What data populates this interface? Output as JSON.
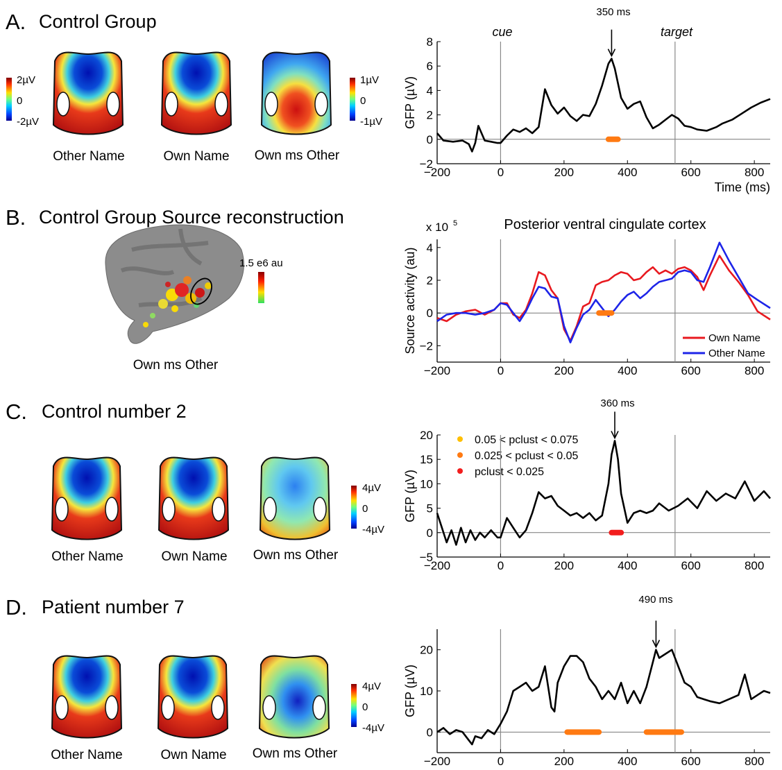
{
  "panels": {
    "A": {
      "letter": "A.",
      "title": "Control Group",
      "maps": [
        "Other Name",
        "Own Name",
        "Own ms Other"
      ],
      "colorbar1": {
        "max": "2µV",
        "mid": "0",
        "min": "-2µV"
      },
      "colorbar2": {
        "max": "1µV",
        "mid": "0",
        "min": "-1µV"
      },
      "annotation": "350 ms",
      "cue_label": "cue",
      "target_label": "target"
    },
    "B": {
      "letter": "B.",
      "title": "Control Group Source reconstruction",
      "brain_label": "Own ms Other",
      "colorbar_label": "1.5 e6 au",
      "plot_title": "Posterior ventral cingulate cortex"
    },
    "C": {
      "letter": "C.",
      "title": "Control number 2",
      "maps": [
        "Other Name",
        "Own Name",
        "Own ms Other"
      ],
      "colorbar": {
        "max": "4µV",
        "mid": "0",
        "min": "-4µV"
      },
      "annotation": "360 ms",
      "legend": [
        "0.05 < pclust < 0.075",
        "0.025 < pclust < 0.05",
        "pclust < 0.025"
      ]
    },
    "D": {
      "letter": "D.",
      "title": "Patient number 7",
      "maps": [
        "Other Name",
        "Own Name",
        "Own ms Other"
      ],
      "colorbar": {
        "max": "4µV",
        "mid": "0",
        "min": "-4µV"
      },
      "annotation": "490 ms"
    }
  },
  "colors": {
    "own": "#e8191f",
    "other": "#1d24e8",
    "sig_orange": "#ff7a12",
    "sig_red": "#f21d1d",
    "sig_yellow": "#ffbf00"
  },
  "chart_data": [
    {
      "id": "A",
      "type": "line",
      "xlabel": "Time (ms)",
      "ylabel": "GFP (µV)",
      "xlim": [
        -200,
        850
      ],
      "ylim": [
        -2,
        8
      ],
      "xticks": [
        -200,
        0,
        200,
        400,
        600,
        800
      ],
      "yticks": [
        -2,
        0,
        2,
        4,
        6,
        8
      ],
      "vlines": [
        0,
        550
      ],
      "series": [
        {
          "x": [
            -200,
            -180,
            -150,
            -120,
            -100,
            -90,
            -80,
            -70,
            -50,
            -30,
            -10,
            0,
            20,
            40,
            60,
            80,
            100,
            120,
            140,
            160,
            180,
            200,
            220,
            240,
            260,
            280,
            300,
            320,
            340,
            350,
            360,
            380,
            400,
            420,
            440,
            460,
            480,
            500,
            520,
            540,
            560,
            580,
            600,
            620,
            650,
            680,
            700,
            730,
            760,
            790,
            820,
            850
          ],
          "y": [
            0.5,
            -0.1,
            -0.2,
            -0.1,
            -0.4,
            -1.0,
            -0.3,
            1.1,
            -0.1,
            -0.2,
            -0.3,
            -0.3,
            0.3,
            0.8,
            0.6,
            0.9,
            0.5,
            1.0,
            4.1,
            2.8,
            2.1,
            2.6,
            1.9,
            1.5,
            2.0,
            1.9,
            2.9,
            4.4,
            6.2,
            6.6,
            5.8,
            3.4,
            2.5,
            2.9,
            3.1,
            1.8,
            0.9,
            1.2,
            1.6,
            2.0,
            1.7,
            1.1,
            1.0,
            0.8,
            0.7,
            1.0,
            1.3,
            1.6,
            2.1,
            2.6,
            3.0,
            3.3
          ]
        }
      ],
      "significance": [
        {
          "range": [
            340,
            370
          ],
          "level": "0.025 < pclust < 0.05"
        }
      ]
    },
    {
      "id": "B",
      "type": "line",
      "title": "Posterior ventral cingulate cortex",
      "ylabel": "Source activity (au)",
      "yscale_label": "x 10",
      "xlim": [
        -200,
        850
      ],
      "ylim": [
        -3,
        4.5
      ],
      "xticks": [
        -200,
        0,
        200,
        400,
        600,
        800
      ],
      "yticks": [
        -2,
        0,
        2,
        4
      ],
      "vlines": [
        0,
        550
      ],
      "series": [
        {
          "name": "Own Name",
          "x": [
            -200,
            -170,
            -140,
            -110,
            -80,
            -50,
            -20,
            0,
            20,
            40,
            60,
            80,
            100,
            120,
            140,
            160,
            180,
            200,
            220,
            240,
            260,
            280,
            300,
            320,
            340,
            360,
            380,
            400,
            420,
            440,
            460,
            480,
            500,
            520,
            540,
            560,
            580,
            600,
            620,
            640,
            660,
            690,
            720,
            750,
            780,
            810,
            850
          ],
          "y": [
            -0.3,
            -0.5,
            -0.1,
            0.1,
            0.2,
            -0.1,
            0.2,
            0.6,
            0.6,
            -0.1,
            -0.3,
            0.2,
            1.2,
            2.5,
            2.3,
            1.4,
            0.9,
            -1.0,
            -1.7,
            -0.8,
            0.4,
            0.6,
            1.7,
            1.9,
            2.0,
            2.3,
            2.5,
            2.4,
            2.0,
            2.1,
            2.5,
            2.8,
            2.4,
            2.6,
            2.4,
            2.7,
            2.8,
            2.6,
            2.2,
            1.4,
            2.3,
            3.5,
            2.6,
            1.9,
            1.1,
            0.1,
            -0.4
          ]
        },
        {
          "name": "Other Name",
          "x": [
            -200,
            -170,
            -140,
            -110,
            -80,
            -50,
            -20,
            0,
            20,
            40,
            60,
            80,
            100,
            120,
            140,
            160,
            180,
            200,
            220,
            240,
            260,
            280,
            300,
            320,
            340,
            360,
            380,
            400,
            420,
            440,
            460,
            480,
            500,
            520,
            540,
            560,
            580,
            600,
            620,
            640,
            660,
            690,
            720,
            750,
            780,
            810,
            850
          ],
          "y": [
            -0.5,
            -0.1,
            0.0,
            0.0,
            -0.1,
            0.0,
            0.2,
            0.6,
            0.5,
            0.0,
            -0.5,
            0.1,
            0.9,
            1.6,
            1.5,
            1.0,
            0.9,
            -0.8,
            -1.8,
            -0.9,
            -0.1,
            0.2,
            0.8,
            0.3,
            -0.2,
            0.2,
            0.7,
            1.1,
            1.3,
            0.9,
            1.2,
            1.6,
            1.9,
            2.0,
            2.1,
            2.5,
            2.6,
            2.5,
            2.0,
            1.9,
            2.8,
            4.3,
            3.2,
            2.2,
            1.2,
            0.8,
            0.3
          ]
        }
      ],
      "significance": [
        {
          "range": [
            310,
            350
          ],
          "level": "0.025 < pclust < 0.05"
        }
      ]
    },
    {
      "id": "C",
      "type": "line",
      "ylabel": "GFP (µV)",
      "xlim": [
        -200,
        850
      ],
      "ylim": [
        -5,
        20
      ],
      "xticks": [
        -200,
        0,
        200,
        400,
        600,
        800
      ],
      "yticks": [
        -5,
        0,
        5,
        10,
        15,
        20
      ],
      "vlines": [
        0,
        550
      ],
      "series": [
        {
          "x": [
            -200,
            -185,
            -170,
            -155,
            -140,
            -125,
            -110,
            -95,
            -80,
            -65,
            -50,
            -30,
            -10,
            0,
            20,
            40,
            60,
            80,
            100,
            120,
            140,
            160,
            180,
            200,
            220,
            240,
            260,
            280,
            300,
            320,
            340,
            350,
            360,
            370,
            380,
            400,
            420,
            440,
            460,
            480,
            500,
            530,
            560,
            590,
            620,
            650,
            680,
            710,
            740,
            770,
            800,
            830,
            850
          ],
          "y": [
            4,
            1,
            -2,
            0.5,
            -2.5,
            1,
            -2,
            0.5,
            -1.5,
            0,
            -1,
            0.5,
            -1,
            -1,
            3,
            1,
            -1,
            0.5,
            4,
            8.3,
            7,
            7.5,
            5.5,
            4.5,
            3.5,
            4,
            3,
            4,
            2.5,
            3.5,
            10,
            16,
            18.8,
            15,
            8,
            2,
            4,
            4.5,
            4,
            4.5,
            6,
            4.5,
            5.5,
            7,
            5,
            8.5,
            6.5,
            8,
            7,
            10.5,
            6.5,
            8.5,
            7
          ]
        }
      ],
      "significance": [
        {
          "range": [
            350,
            380
          ],
          "level": "pclust < 0.025"
        }
      ]
    },
    {
      "id": "D",
      "type": "line",
      "ylabel": "GFP (µV)",
      "xlim": [
        -200,
        850
      ],
      "ylim": [
        -5,
        25
      ],
      "xticks": [
        -200,
        0,
        200,
        400,
        600,
        800
      ],
      "yticks": [
        0,
        10,
        20
      ],
      "vlines": [
        0,
        550
      ],
      "series": [
        {
          "x": [
            -200,
            -180,
            -160,
            -140,
            -120,
            -100,
            -90,
            -80,
            -60,
            -40,
            -20,
            0,
            20,
            40,
            60,
            80,
            100,
            120,
            140,
            160,
            170,
            180,
            200,
            220,
            240,
            260,
            280,
            300,
            320,
            340,
            360,
            380,
            400,
            420,
            440,
            460,
            480,
            490,
            500,
            520,
            540,
            560,
            580,
            600,
            620,
            640,
            660,
            690,
            720,
            750,
            770,
            790,
            810,
            830,
            850
          ],
          "y": [
            0,
            1,
            -0.5,
            0.5,
            0,
            -2,
            -3,
            -1,
            -1.5,
            0.5,
            -0.5,
            2,
            5,
            10,
            11,
            12,
            10,
            11,
            16,
            6,
            5,
            12,
            16,
            18.5,
            18.5,
            17,
            13,
            11,
            8,
            10,
            8,
            12,
            7,
            10,
            7,
            11,
            17,
            20,
            18,
            19,
            20,
            16,
            12,
            11,
            8.5,
            8,
            7.5,
            7,
            8,
            9,
            14,
            8,
            9,
            10,
            9.5
          ]
        }
      ],
      "significance": [
        {
          "range": [
            210,
            310
          ],
          "level": "0.025 < pclust < 0.05"
        },
        {
          "range": [
            460,
            570
          ],
          "level": "0.025 < pclust < 0.05"
        }
      ]
    }
  ]
}
